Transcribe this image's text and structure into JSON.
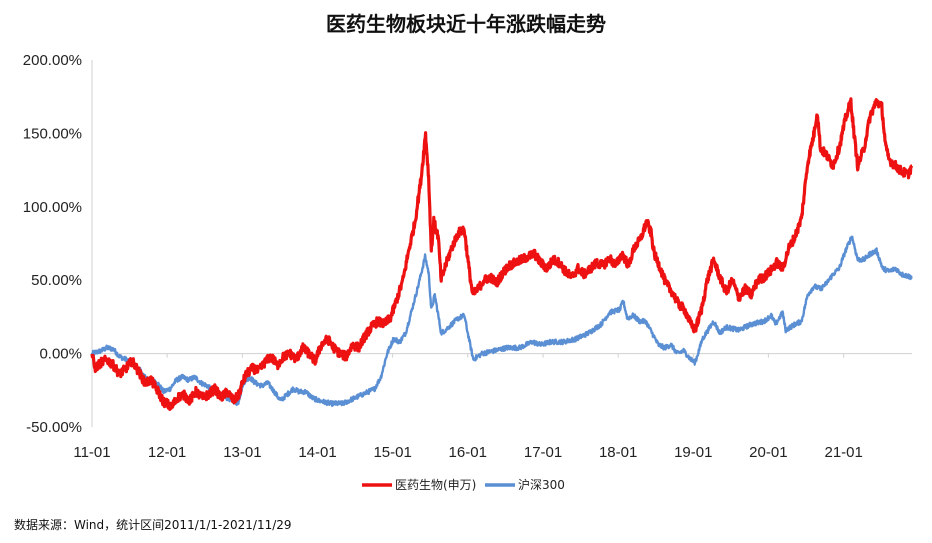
{
  "chart_data": {
    "type": "line",
    "title": "医药生物板块近十年涨跌幅走势",
    "xlabel": "",
    "ylabel": "",
    "x_tick_labels": [
      "11-01",
      "12-01",
      "13-01",
      "14-01",
      "15-01",
      "16-01",
      "17-01",
      "18-01",
      "19-01",
      "20-01",
      "21-01"
    ],
    "y_tick_labels": [
      "200.00%",
      "150.00%",
      "100.00%",
      "50.00%",
      "0.00%",
      "-50.00%"
    ],
    "ylim": [
      -50,
      200
    ],
    "y_unit": "%",
    "x_range": [
      "2011-01-01",
      "2021-11-29"
    ],
    "grid": false,
    "legend_position": "bottom",
    "series": [
      {
        "name": "医药生物(申万)",
        "color": "#ee1111",
        "points": [
          [
            "2011-01-01",
            0
          ],
          [
            "2011-01-15",
            -10
          ],
          [
            "2011-02-15",
            -6
          ],
          [
            "2011-03-15",
            -4
          ],
          [
            "2011-04-15",
            -8
          ],
          [
            "2011-05-15",
            -14
          ],
          [
            "2011-06-15",
            -10
          ],
          [
            "2011-07-15",
            -5
          ],
          [
            "2011-08-15",
            -12
          ],
          [
            "2011-09-15",
            -20
          ],
          [
            "2011-10-15",
            -18
          ],
          [
            "2011-11-15",
            -25
          ],
          [
            "2011-12-15",
            -33
          ],
          [
            "2012-01-01",
            -34
          ],
          [
            "2012-01-20",
            -37
          ],
          [
            "2012-02-20",
            -30
          ],
          [
            "2012-03-20",
            -28
          ],
          [
            "2012-04-20",
            -32
          ],
          [
            "2012-05-20",
            -26
          ],
          [
            "2012-06-20",
            -30
          ],
          [
            "2012-07-20",
            -28
          ],
          [
            "2012-08-20",
            -24
          ],
          [
            "2012-09-20",
            -30
          ],
          [
            "2012-10-20",
            -26
          ],
          [
            "2012-11-20",
            -32
          ],
          [
            "2012-12-15",
            -28
          ],
          [
            "2013-01-01",
            -20
          ],
          [
            "2013-01-20",
            -14
          ],
          [
            "2013-02-20",
            -10
          ],
          [
            "2013-03-20",
            -12
          ],
          [
            "2013-04-20",
            -6
          ],
          [
            "2013-05-20",
            -2
          ],
          [
            "2013-06-20",
            -8
          ],
          [
            "2013-07-20",
            -2
          ],
          [
            "2013-08-20",
            0
          ],
          [
            "2013-09-20",
            -4
          ],
          [
            "2013-10-20",
            4
          ],
          [
            "2013-11-20",
            0
          ],
          [
            "2013-12-20",
            -5
          ],
          [
            "2014-01-20",
            6
          ],
          [
            "2014-02-20",
            10
          ],
          [
            "2014-03-20",
            4
          ],
          [
            "2014-04-20",
            0
          ],
          [
            "2014-05-20",
            -2
          ],
          [
            "2014-06-20",
            6
          ],
          [
            "2014-07-20",
            4
          ],
          [
            "2014-08-20",
            12
          ],
          [
            "2014-09-20",
            18
          ],
          [
            "2014-10-20",
            22
          ],
          [
            "2014-11-20",
            20
          ],
          [
            "2014-12-20",
            24
          ],
          [
            "2015-01-20",
            36
          ],
          [
            "2015-02-20",
            50
          ],
          [
            "2015-03-20",
            70
          ],
          [
            "2015-04-20",
            90
          ],
          [
            "2015-05-20",
            120
          ],
          [
            "2015-06-10",
            150
          ],
          [
            "2015-06-25",
            120
          ],
          [
            "2015-07-08",
            70
          ],
          [
            "2015-07-20",
            90
          ],
          [
            "2015-08-10",
            80
          ],
          [
            "2015-08-25",
            50
          ],
          [
            "2015-09-15",
            60
          ],
          [
            "2015-10-15",
            72
          ],
          [
            "2015-11-15",
            82
          ],
          [
            "2015-12-15",
            85
          ],
          [
            "2016-01-05",
            60
          ],
          [
            "2016-01-25",
            40
          ],
          [
            "2016-02-20",
            44
          ],
          [
            "2016-03-20",
            50
          ],
          [
            "2016-04-20",
            52
          ],
          [
            "2016-05-20",
            48
          ],
          [
            "2016-06-20",
            55
          ],
          [
            "2016-07-20",
            60
          ],
          [
            "2016-08-20",
            62
          ],
          [
            "2016-09-20",
            64
          ],
          [
            "2016-10-20",
            66
          ],
          [
            "2016-11-20",
            68
          ],
          [
            "2016-12-20",
            62
          ],
          [
            "2017-01-20",
            58
          ],
          [
            "2017-02-20",
            64
          ],
          [
            "2017-03-20",
            62
          ],
          [
            "2017-04-20",
            56
          ],
          [
            "2017-05-20",
            52
          ],
          [
            "2017-06-20",
            58
          ],
          [
            "2017-07-20",
            54
          ],
          [
            "2017-08-20",
            58
          ],
          [
            "2017-09-20",
            62
          ],
          [
            "2017-10-20",
            60
          ],
          [
            "2017-11-20",
            65
          ],
          [
            "2017-12-20",
            60
          ],
          [
            "2018-01-20",
            68
          ],
          [
            "2018-02-20",
            60
          ],
          [
            "2018-03-20",
            72
          ],
          [
            "2018-04-20",
            78
          ],
          [
            "2018-05-20",
            90
          ],
          [
            "2018-06-10",
            82
          ],
          [
            "2018-06-25",
            68
          ],
          [
            "2018-07-20",
            60
          ],
          [
            "2018-08-20",
            48
          ],
          [
            "2018-09-20",
            42
          ],
          [
            "2018-10-20",
            34
          ],
          [
            "2018-11-20",
            30
          ],
          [
            "2018-12-20",
            20
          ],
          [
            "2019-01-10",
            16
          ],
          [
            "2019-02-10",
            30
          ],
          [
            "2019-03-10",
            50
          ],
          [
            "2019-04-10",
            64
          ],
          [
            "2019-05-10",
            52
          ],
          [
            "2019-06-10",
            42
          ],
          [
            "2019-07-10",
            50
          ],
          [
            "2019-08-10",
            38
          ],
          [
            "2019-09-10",
            44
          ],
          [
            "2019-10-10",
            40
          ],
          [
            "2019-11-10",
            50
          ],
          [
            "2019-12-10",
            52
          ],
          [
            "2020-01-10",
            56
          ],
          [
            "2020-02-10",
            62
          ],
          [
            "2020-03-10",
            58
          ],
          [
            "2020-04-10",
            72
          ],
          [
            "2020-05-10",
            80
          ],
          [
            "2020-06-10",
            92
          ],
          [
            "2020-07-10",
            130
          ],
          [
            "2020-08-10",
            150
          ],
          [
            "2020-08-25",
            165
          ],
          [
            "2020-09-10",
            140
          ],
          [
            "2020-10-10",
            135
          ],
          [
            "2020-11-10",
            128
          ],
          [
            "2020-12-10",
            140
          ],
          [
            "2021-01-10",
            160
          ],
          [
            "2021-02-05",
            172
          ],
          [
            "2021-02-20",
            150
          ],
          [
            "2021-03-10",
            128
          ],
          [
            "2021-04-10",
            140
          ],
          [
            "2021-05-10",
            162
          ],
          [
            "2021-06-10",
            172
          ],
          [
            "2021-07-05",
            168
          ],
          [
            "2021-07-25",
            140
          ],
          [
            "2021-08-10",
            132
          ],
          [
            "2021-09-10",
            128
          ],
          [
            "2021-10-10",
            124
          ],
          [
            "2021-11-10",
            122
          ],
          [
            "2021-11-29",
            128
          ]
        ]
      },
      {
        "name": "沪深300",
        "color": "#5b8fd4",
        "points": [
          [
            "2011-01-01",
            0
          ],
          [
            "2011-02-15",
            2
          ],
          [
            "2011-03-15",
            4
          ],
          [
            "2011-04-15",
            3
          ],
          [
            "2011-05-15",
            -2
          ],
          [
            "2011-06-15",
            -4
          ],
          [
            "2011-07-15",
            -6
          ],
          [
            "2011-08-15",
            -10
          ],
          [
            "2011-09-15",
            -16
          ],
          [
            "2011-10-15",
            -18
          ],
          [
            "2011-11-15",
            -20
          ],
          [
            "2011-12-15",
            -26
          ],
          [
            "2012-01-15",
            -24
          ],
          [
            "2012-02-15",
            -18
          ],
          [
            "2012-03-15",
            -16
          ],
          [
            "2012-04-15",
            -18
          ],
          [
            "2012-05-15",
            -16
          ],
          [
            "2012-06-15",
            -20
          ],
          [
            "2012-07-15",
            -22
          ],
          [
            "2012-08-15",
            -26
          ],
          [
            "2012-09-15",
            -28
          ],
          [
            "2012-10-15",
            -30
          ],
          [
            "2012-11-15",
            -32
          ],
          [
            "2012-12-10",
            -34
          ],
          [
            "2013-01-05",
            -20
          ],
          [
            "2013-02-05",
            -16
          ],
          [
            "2013-03-05",
            -20
          ],
          [
            "2013-04-05",
            -22
          ],
          [
            "2013-05-05",
            -20
          ],
          [
            "2013-06-05",
            -26
          ],
          [
            "2013-07-05",
            -32
          ],
          [
            "2013-08-05",
            -28
          ],
          [
            "2013-09-05",
            -24
          ],
          [
            "2013-10-05",
            -26
          ],
          [
            "2013-11-05",
            -26
          ],
          [
            "2013-12-05",
            -30
          ],
          [
            "2014-01-05",
            -32
          ],
          [
            "2014-03-05",
            -34
          ],
          [
            "2014-05-05",
            -34
          ],
          [
            "2014-07-05",
            -30
          ],
          [
            "2014-09-05",
            -26
          ],
          [
            "2014-10-05",
            -24
          ],
          [
            "2014-11-05",
            -16
          ],
          [
            "2014-12-05",
            0
          ],
          [
            "2015-01-05",
            10
          ],
          [
            "2015-02-05",
            8
          ],
          [
            "2015-03-05",
            14
          ],
          [
            "2015-04-05",
            30
          ],
          [
            "2015-05-05",
            46
          ],
          [
            "2015-06-08",
            66
          ],
          [
            "2015-06-25",
            55
          ],
          [
            "2015-07-08",
            30
          ],
          [
            "2015-07-25",
            40
          ],
          [
            "2015-08-25",
            14
          ],
          [
            "2015-09-15",
            16
          ],
          [
            "2015-10-15",
            20
          ],
          [
            "2015-11-15",
            24
          ],
          [
            "2015-12-15",
            26
          ],
          [
            "2016-01-10",
            8
          ],
          [
            "2016-01-28",
            -4
          ],
          [
            "2016-03-10",
            0
          ],
          [
            "2016-05-10",
            2
          ],
          [
            "2016-07-10",
            4
          ],
          [
            "2016-09-10",
            4
          ],
          [
            "2016-11-10",
            8
          ],
          [
            "2016-12-20",
            6
          ],
          [
            "2017-02-10",
            8
          ],
          [
            "2017-04-10",
            8
          ],
          [
            "2017-06-10",
            10
          ],
          [
            "2017-08-10",
            14
          ],
          [
            "2017-10-10",
            20
          ],
          [
            "2017-11-20",
            28
          ],
          [
            "2018-01-10",
            30
          ],
          [
            "2018-01-25",
            36
          ],
          [
            "2018-02-15",
            24
          ],
          [
            "2018-03-15",
            26
          ],
          [
            "2018-04-15",
            22
          ],
          [
            "2018-05-15",
            22
          ],
          [
            "2018-06-15",
            14
          ],
          [
            "2018-07-15",
            6
          ],
          [
            "2018-08-15",
            4
          ],
          [
            "2018-09-15",
            6
          ],
          [
            "2018-10-15",
            0
          ],
          [
            "2018-11-15",
            2
          ],
          [
            "2018-12-20",
            -4
          ],
          [
            "2019-01-10",
            -6
          ],
          [
            "2019-02-15",
            10
          ],
          [
            "2019-04-10",
            22
          ],
          [
            "2019-05-10",
            14
          ],
          [
            "2019-06-10",
            18
          ],
          [
            "2019-08-10",
            16
          ],
          [
            "2019-10-10",
            20
          ],
          [
            "2019-12-10",
            22
          ],
          [
            "2020-01-15",
            26
          ],
          [
            "2020-02-05",
            20
          ],
          [
            "2020-03-10",
            28
          ],
          [
            "2020-03-25",
            16
          ],
          [
            "2020-05-10",
            20
          ],
          [
            "2020-06-10",
            22
          ],
          [
            "2020-07-10",
            40
          ],
          [
            "2020-08-10",
            46
          ],
          [
            "2020-09-10",
            44
          ],
          [
            "2020-10-10",
            48
          ],
          [
            "2020-11-10",
            54
          ],
          [
            "2020-12-10",
            58
          ],
          [
            "2021-01-10",
            70
          ],
          [
            "2021-02-10",
            80
          ],
          [
            "2021-03-10",
            64
          ],
          [
            "2021-04-10",
            64
          ],
          [
            "2021-05-10",
            68
          ],
          [
            "2021-06-10",
            70
          ],
          [
            "2021-07-10",
            58
          ],
          [
            "2021-08-10",
            56
          ],
          [
            "2021-09-10",
            58
          ],
          [
            "2021-10-10",
            54
          ],
          [
            "2021-11-29",
            52
          ]
        ]
      }
    ]
  },
  "source_note": "数据来源：Wind，统计区间2011/1/1-2021/11/29"
}
